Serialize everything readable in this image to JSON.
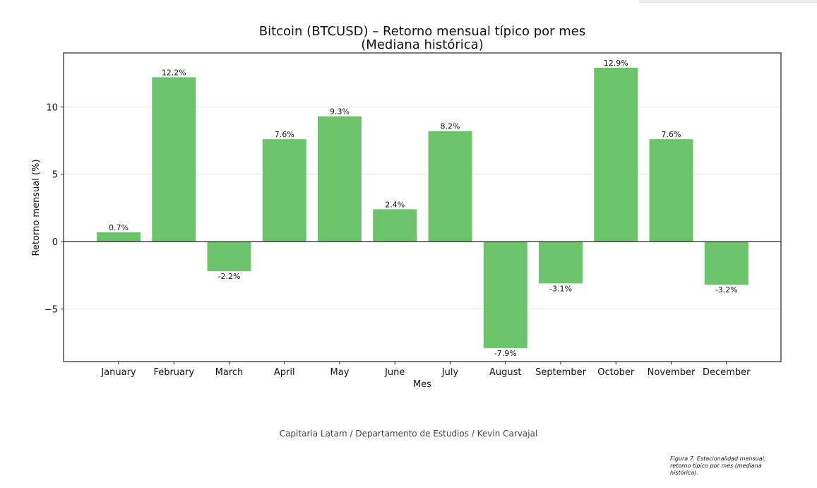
{
  "chart_data": {
    "type": "bar",
    "title_line1": "Bitcoin (BTCUSD) – Retorno mensual típico por mes",
    "title_line2": "(Mediana histórica)",
    "xlabel": "Mes",
    "ylabel": "Retorno mensual (%)",
    "categories": [
      "January",
      "February",
      "March",
      "April",
      "May",
      "June",
      "July",
      "August",
      "September",
      "October",
      "November",
      "December"
    ],
    "values": [
      0.7,
      12.2,
      -2.2,
      7.6,
      9.3,
      2.4,
      8.2,
      -7.9,
      -3.1,
      12.9,
      7.6,
      -3.2
    ],
    "value_labels": [
      "0.7%",
      "12.2%",
      "-2.2%",
      "7.6%",
      "9.3%",
      "2.4%",
      "8.2%",
      "-7.9%",
      "-3.1%",
      "12.9%",
      "7.6%",
      "-3.2%"
    ],
    "y_ticks": [
      -5,
      0,
      5,
      10
    ],
    "y_tick_labels": [
      "−5",
      "0",
      "5",
      "10"
    ],
    "ylim": [
      -8.9,
      14.0
    ],
    "grid": "horizontal",
    "zero_line": true,
    "bar_color": "#6cc46a"
  },
  "footer": {
    "credit": "Capitaria Latam / Departamento de Estudios / Kevin Carvajal",
    "caption": "Figura 7. Estacionalidad mensual: retorno típico por mes (mediana histórica)."
  }
}
